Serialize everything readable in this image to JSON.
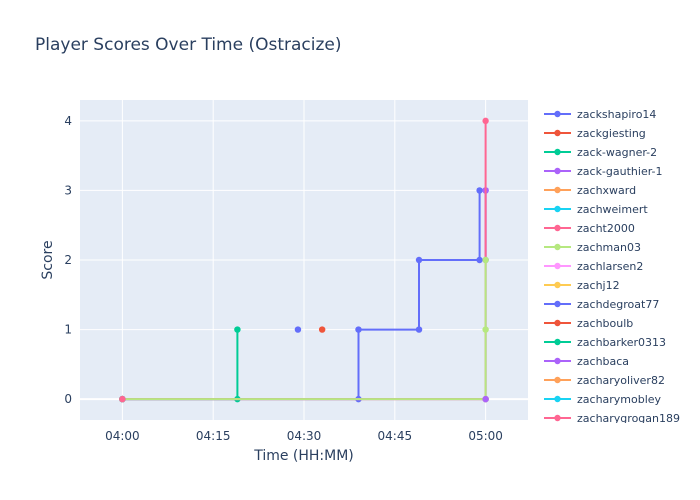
{
  "chart_data": {
    "type": "line",
    "line_shape": "step",
    "title": "Player Scores Over Time (Ostracize)",
    "xlabel": "Time (HH:MM)",
    "ylabel": "Score",
    "x_ticks": [
      "04:00",
      "04:15",
      "04:30",
      "04:45",
      "05:00"
    ],
    "y_ticks": [
      0,
      1,
      2,
      3,
      4
    ],
    "xlim": [
      "03:53",
      "05:07"
    ],
    "ylim": [
      -0.3,
      4.3
    ],
    "grid": true,
    "legend_position": "right",
    "series": [
      {
        "name": "zackshapiro14",
        "color": "#636efa",
        "points": [
          [
            "04:00",
            0
          ],
          [
            "04:39",
            0
          ],
          [
            "04:39",
            1
          ],
          [
            "04:49",
            1
          ],
          [
            "04:49",
            2
          ],
          [
            "04:59",
            2
          ],
          [
            "04:59",
            3
          ],
          [
            "05:00",
            3
          ],
          [
            "05:00",
            2
          ]
        ]
      },
      {
        "name": "zackgiesting",
        "color": "#EF553B",
        "points": [
          [
            "04:33",
            1
          ]
        ]
      },
      {
        "name": "zack-wagner-2",
        "color": "#00cc96",
        "points": [
          [
            "04:00",
            0
          ],
          [
            "04:19",
            0
          ],
          [
            "04:19",
            1
          ]
        ]
      },
      {
        "name": "zack-gauthier-1",
        "color": "#ab63fa",
        "points": [
          [
            "04:00",
            0
          ],
          [
            "05:00",
            0
          ],
          [
            "05:00",
            3
          ]
        ]
      },
      {
        "name": "zachxward",
        "color": "#FFA15A",
        "points": [
          [
            "04:00",
            0
          ]
        ]
      },
      {
        "name": "zachweimert",
        "color": "#19d3f3",
        "points": [
          [
            "04:00",
            0
          ]
        ]
      },
      {
        "name": "zacht2000",
        "color": "#FF6692",
        "points": [
          [
            "04:00",
            0
          ],
          [
            "05:00",
            0
          ],
          [
            "05:00",
            4
          ]
        ]
      },
      {
        "name": "zachman03",
        "color": "#B6E880",
        "points": [
          [
            "04:00",
            0
          ],
          [
            "05:00",
            0
          ],
          [
            "05:00",
            1
          ],
          [
            "05:00",
            2
          ]
        ]
      },
      {
        "name": "zachlarsen2",
        "color": "#FF97FF",
        "points": [
          [
            "04:00",
            0
          ]
        ]
      },
      {
        "name": "zachj12",
        "color": "#FECB52",
        "points": [
          [
            "04:00",
            0
          ]
        ]
      },
      {
        "name": "zachdegroat77",
        "color": "#636efa",
        "points": [
          [
            "04:29",
            1
          ]
        ]
      },
      {
        "name": "zachboulb",
        "color": "#EF553B",
        "points": [
          [
            "04:00",
            0
          ]
        ]
      },
      {
        "name": "zachbarker0313",
        "color": "#00cc96",
        "points": [
          [
            "04:00",
            0
          ]
        ]
      },
      {
        "name": "zachbaca",
        "color": "#ab63fa",
        "points": [
          [
            "05:00",
            0
          ]
        ]
      },
      {
        "name": "zacharyoliver82",
        "color": "#FFA15A",
        "points": [
          [
            "04:00",
            0
          ]
        ]
      },
      {
        "name": "zacharymobley",
        "color": "#19d3f3",
        "points": [
          [
            "04:00",
            0
          ]
        ]
      },
      {
        "name": "zacharygrogan189",
        "color": "#FF6692",
        "points": [
          [
            "04:00",
            0
          ]
        ]
      }
    ]
  }
}
